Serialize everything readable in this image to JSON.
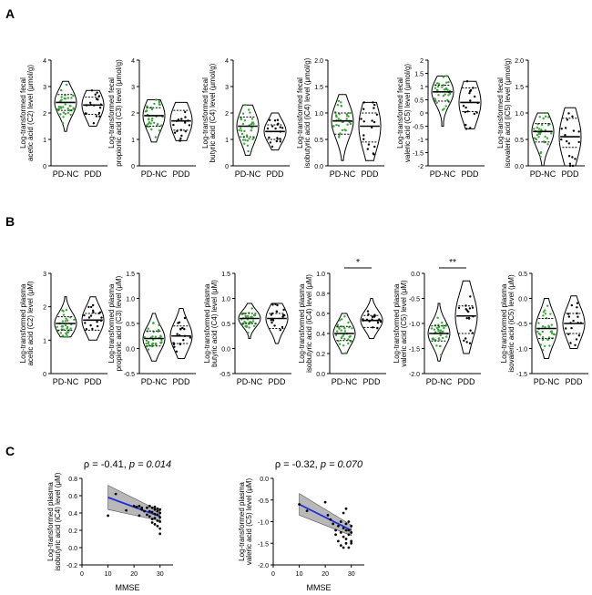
{
  "panels": [
    {
      "letter": "A"
    },
    {
      "letter": "B"
    },
    {
      "letter": "C"
    }
  ],
  "colors": {
    "pdnc_dots": "#3aa63a",
    "pdd_dots": "#000000",
    "fit_line": "#1f2fd6",
    "ci_band": "#b8b8b8"
  },
  "chart_data": [
    {
      "panel": "A",
      "type": "violin",
      "ylabel": [
        "Log-transformed fecal",
        "acetic acid (C2) level (μmol/g)"
      ],
      "categories": [
        "PD-NC",
        "PDD"
      ],
      "ylim": [
        0,
        4
      ],
      "yticks": [
        "0",
        "1",
        "2",
        "3",
        "4"
      ],
      "yticks_values": [
        0,
        1,
        2,
        3,
        4
      ],
      "series": [
        {
          "category": "PD-NC",
          "median": 2.4,
          "q1": 2.1,
          "q3": 2.7,
          "min": 1.3,
          "max": 3.2
        },
        {
          "category": "PDD",
          "median": 2.3,
          "q1": 1.95,
          "q3": 2.6,
          "min": 1.5,
          "max": 2.85
        }
      ],
      "significance": ""
    },
    {
      "panel": "A",
      "type": "violin",
      "ylabel": [
        "Log-transformed fecal",
        "propionic acid (C3) level (μmol/g)"
      ],
      "categories": [
        "PD-NC",
        "PDD"
      ],
      "ylim": [
        0,
        4
      ],
      "yticks": [
        "0",
        "1",
        "2",
        "3",
        "4"
      ],
      "yticks_values": [
        0,
        1,
        2,
        3,
        4
      ],
      "series": [
        {
          "category": "PD-NC",
          "median": 1.9,
          "q1": 1.5,
          "q3": 2.2,
          "min": 0.9,
          "max": 2.5
        },
        {
          "category": "PDD",
          "median": 1.7,
          "q1": 1.35,
          "q3": 2.1,
          "min": 0.95,
          "max": 2.4
        }
      ],
      "significance": ""
    },
    {
      "panel": "A",
      "type": "violin",
      "ylabel": [
        "Log-transformed fecal",
        "butyric acid (C4) level (μmol/g)"
      ],
      "categories": [
        "PD-NC",
        "PDD"
      ],
      "ylim": [
        0,
        4
      ],
      "yticks": [
        "0",
        "1",
        "2",
        "3",
        "4"
      ],
      "yticks_values": [
        0,
        1,
        2,
        3,
        4
      ],
      "series": [
        {
          "category": "PD-NC",
          "median": 1.5,
          "q1": 1.1,
          "q3": 1.85,
          "min": 0.4,
          "max": 2.3
        },
        {
          "category": "PDD",
          "median": 1.3,
          "q1": 1.0,
          "q3": 1.55,
          "min": 0.6,
          "max": 2.0
        }
      ],
      "significance": ""
    },
    {
      "panel": "A",
      "type": "violin",
      "ylabel": [
        "Log-transformed fecal",
        "isobutyric acid (iC4) level (μmol/g)"
      ],
      "categories": [
        "PD-NC",
        "PDD"
      ],
      "ylim": [
        0,
        2
      ],
      "yticks": [
        "0.0",
        "0.5",
        "1.0",
        "1.5",
        "2.0"
      ],
      "yticks_values": [
        0,
        0.5,
        1,
        1.5,
        2
      ],
      "series": [
        {
          "category": "PD-NC",
          "median": 0.85,
          "q1": 0.6,
          "q3": 1.0,
          "min": 0.1,
          "max": 1.35
        },
        {
          "category": "PDD",
          "median": 0.75,
          "q1": 0.45,
          "q3": 1.0,
          "min": 0.1,
          "max": 1.2
        }
      ],
      "significance": ""
    },
    {
      "panel": "A",
      "type": "violin",
      "ylabel": [
        "Log-transformed fecal",
        "valeric acid (C5) level (μmol/g)"
      ],
      "categories": [
        "PD-NC",
        "PDD"
      ],
      "ylim": [
        -2,
        2
      ],
      "yticks": [
        "-2",
        "-1.5",
        "-1",
        "-0.5",
        "0",
        "0.5",
        "1",
        "1.5",
        "2"
      ],
      "yticks_values": [
        -2,
        -1.5,
        -1,
        -0.5,
        0,
        0.5,
        1,
        1.5,
        2
      ],
      "series": [
        {
          "category": "PD-NC",
          "median": 0.8,
          "q1": 0.45,
          "q3": 1.05,
          "min": -0.5,
          "max": 1.4
        },
        {
          "category": "PDD",
          "median": 0.4,
          "q1": 0.05,
          "q3": 0.95,
          "min": -0.6,
          "max": 1.2
        }
      ],
      "significance": ""
    },
    {
      "panel": "A",
      "type": "violin",
      "ylabel": [
        "Log-transformed fecal",
        "isovaleric acid (iC5) level (μmol/g)"
      ],
      "categories": [
        "PD-NC",
        "PDD"
      ],
      "ylim": [
        0,
        2
      ],
      "yticks": [
        "0.0",
        "0.5",
        "1.0",
        "1.5",
        "2.0"
      ],
      "yticks_values": [
        0,
        0.5,
        1,
        1.5,
        2
      ],
      "series": [
        {
          "category": "PD-NC",
          "median": 0.65,
          "q1": 0.45,
          "q3": 0.8,
          "min": 0.0,
          "max": 1.0
        },
        {
          "category": "PDD",
          "median": 0.55,
          "q1": 0.35,
          "q3": 0.9,
          "min": 0.0,
          "max": 1.1
        }
      ],
      "significance": ""
    },
    {
      "panel": "B",
      "type": "violin",
      "ylabel": [
        "Log-transformed plasma",
        "acetic acid (C2) level (μM)"
      ],
      "categories": [
        "PD-NC",
        "PDD"
      ],
      "ylim": [
        0,
        3
      ],
      "yticks": [
        "0",
        "1",
        "2",
        "3"
      ],
      "yticks_values": [
        0,
        1,
        2,
        3
      ],
      "series": [
        {
          "category": "PD-NC",
          "median": 1.5,
          "q1": 1.3,
          "q3": 1.7,
          "min": 1.1,
          "max": 2.3
        },
        {
          "category": "PDD",
          "median": 1.6,
          "q1": 1.3,
          "q3": 1.8,
          "min": 1.0,
          "max": 2.3
        }
      ],
      "significance": ""
    },
    {
      "panel": "B",
      "type": "violin",
      "ylabel": [
        "Log-transformed plasma",
        "propionic acid (C3) level (μM)"
      ],
      "categories": [
        "PD-NC",
        "PDD"
      ],
      "ylim": [
        -0.5,
        1.5
      ],
      "yticks": [
        "-0.5",
        "0.0",
        "0.5",
        "1.0",
        "1.5"
      ],
      "yticks_values": [
        -0.5,
        0,
        0.5,
        1,
        1.5
      ],
      "series": [
        {
          "category": "PD-NC",
          "median": 0.2,
          "q1": 0.05,
          "q3": 0.35,
          "min": -0.25,
          "max": 0.7
        },
        {
          "category": "PDD",
          "median": 0.25,
          "q1": 0.1,
          "q3": 0.45,
          "min": -0.2,
          "max": 0.8
        }
      ],
      "significance": ""
    },
    {
      "panel": "B",
      "type": "violin",
      "ylabel": [
        "Log-transformed plasma",
        "butyric acid (C4) level (μM)"
      ],
      "categories": [
        "PD-NC",
        "PDD"
      ],
      "ylim": [
        -0.5,
        1.5
      ],
      "yticks": [
        "-0.5",
        "0.0",
        "0.5",
        "1.0",
        "1.5"
      ],
      "yticks_values": [
        -0.5,
        0,
        0.5,
        1,
        1.5
      ],
      "series": [
        {
          "category": "PD-NC",
          "median": 0.6,
          "q1": 0.5,
          "q3": 0.7,
          "min": 0.2,
          "max": 0.9
        },
        {
          "category": "PDD",
          "median": 0.6,
          "q1": 0.4,
          "q3": 0.7,
          "min": 0.1,
          "max": 0.9
        }
      ],
      "significance": ""
    },
    {
      "panel": "B",
      "type": "violin",
      "ylabel": [
        "Log-transformed plasma",
        "isobutyric acid (iC4) level (μM)"
      ],
      "categories": [
        "PD-NC",
        "PDD"
      ],
      "ylim": [
        0,
        1
      ],
      "yticks": [
        "0.0",
        "0.2",
        "0.4",
        "0.6",
        "0.8",
        "1.0"
      ],
      "yticks_values": [
        0,
        0.2,
        0.4,
        0.6,
        0.8,
        1
      ],
      "series": [
        {
          "category": "PD-NC",
          "median": 0.4,
          "q1": 0.33,
          "q3": 0.47,
          "min": 0.2,
          "max": 0.6
        },
        {
          "category": "PDD",
          "median": 0.53,
          "q1": 0.46,
          "q3": 0.58,
          "min": 0.35,
          "max": 0.75
        }
      ],
      "significance": "*"
    },
    {
      "panel": "B",
      "type": "violin",
      "ylabel": [
        "Log-transformed plasma",
        "valeric acid (C5) level (μM)"
      ],
      "categories": [
        "PD-NC",
        "PDD"
      ],
      "ylim": [
        -2,
        0
      ],
      "yticks": [
        "-2.0",
        "-1.5",
        "-1.0",
        "-0.5",
        "0.0"
      ],
      "yticks_values": [
        -2,
        -1.5,
        -1,
        -0.5,
        0
      ],
      "series": [
        {
          "category": "PD-NC",
          "median": -1.2,
          "q1": -1.35,
          "q3": -1.05,
          "min": -1.75,
          "max": -0.6
        },
        {
          "category": "PDD",
          "median": -0.85,
          "q1": -1.2,
          "q3": -0.65,
          "min": -1.6,
          "max": -0.15
        }
      ],
      "significance": "**"
    },
    {
      "panel": "B",
      "type": "violin",
      "ylabel": [
        "Log-transformed plasma",
        "isovaleric acid (iC5) level (μM)"
      ],
      "categories": [
        "PD-NC",
        "PDD"
      ],
      "ylim": [
        -1.5,
        0.5
      ],
      "yticks": [
        "-1.5",
        "-1.0",
        "-0.5",
        "0.0",
        "0.5"
      ],
      "yticks_values": [
        -1.5,
        -1,
        -0.5,
        0,
        0.5
      ],
      "series": [
        {
          "category": "PD-NC",
          "median": -0.6,
          "q1": -0.8,
          "q3": -0.4,
          "min": -1.2,
          "max": 0.0
        },
        {
          "category": "PDD",
          "median": -0.5,
          "q1": -0.7,
          "q3": -0.3,
          "min": -1.0,
          "max": 0.05
        }
      ],
      "significance": ""
    },
    {
      "panel": "C",
      "type": "scatter",
      "annotation": {
        "rho": "ρ = -0.41, ",
        "p": "p = 0.014"
      },
      "ylabel": [
        "Log-transformed plasma",
        "isobutyric acid (iC4) level (μM)"
      ],
      "xlabel": "MMSE",
      "xlim": [
        0,
        35
      ],
      "ylim": [
        -0.2,
        0.8
      ],
      "xticks": [
        "0",
        "10",
        "20",
        "30"
      ],
      "xticks_values": [
        0,
        10,
        20,
        30
      ],
      "yticks": [
        "-0.2",
        "0.0",
        "0.2",
        "0.4",
        "0.6",
        "0.8"
      ],
      "yticks_values": [
        -0.2,
        0,
        0.2,
        0.4,
        0.6,
        0.8
      ],
      "regression": {
        "x": [
          10,
          30
        ],
        "y": [
          0.58,
          0.36
        ],
        "ci_upper": [
          0.72,
          0.42
        ],
        "ci_lower": [
          0.44,
          0.31
        ]
      },
      "points": [
        [
          10,
          0.37
        ],
        [
          13,
          0.62
        ],
        [
          17,
          0.43
        ],
        [
          20,
          0.48
        ],
        [
          21,
          0.47
        ],
        [
          22,
          0.48
        ],
        [
          22,
          0.37
        ],
        [
          23,
          0.46
        ],
        [
          23,
          0.44
        ],
        [
          24,
          0.42
        ],
        [
          25,
          0.46
        ],
        [
          25,
          0.38
        ],
        [
          26,
          0.48
        ],
        [
          26,
          0.42
        ],
        [
          26,
          0.36
        ],
        [
          27,
          0.46
        ],
        [
          27,
          0.41
        ],
        [
          27,
          0.33
        ],
        [
          27,
          0.29
        ],
        [
          28,
          0.47
        ],
        [
          28,
          0.44
        ],
        [
          28,
          0.39
        ],
        [
          28,
          0.34
        ],
        [
          28,
          0.27
        ],
        [
          29,
          0.45
        ],
        [
          29,
          0.42
        ],
        [
          29,
          0.38
        ],
        [
          29,
          0.31
        ],
        [
          29,
          0.25
        ],
        [
          30,
          0.44
        ],
        [
          30,
          0.4
        ],
        [
          30,
          0.35
        ],
        [
          30,
          0.3
        ],
        [
          30,
          0.22
        ],
        [
          30,
          0.16
        ]
      ]
    },
    {
      "panel": "C",
      "type": "scatter",
      "annotation": {
        "rho": "ρ = -0.32, ",
        "p": "p = 0.070"
      },
      "ylabel": [
        "Log-transformed plasma",
        "valeric acid (C5) level (μM)"
      ],
      "xlabel": "MMSE",
      "xlim": [
        0,
        35
      ],
      "ylim": [
        -2,
        0
      ],
      "xticks": [
        "0",
        "10",
        "20",
        "30"
      ],
      "xticks_values": [
        0,
        10,
        20,
        30
      ],
      "yticks": [
        "-2.0",
        "-1.5",
        "-1.0",
        "-0.5",
        "0.0"
      ],
      "yticks_values": [
        -2,
        -1.5,
        -1,
        -0.5,
        0
      ],
      "regression": {
        "x": [
          10,
          30
        ],
        "y": [
          -0.6,
          -1.2
        ],
        "ci_upper": [
          -0.35,
          -1.08
        ],
        "ci_lower": [
          -0.85,
          -1.32
        ]
      },
      "points": [
        [
          10,
          -0.6
        ],
        [
          13,
          -0.75
        ],
        [
          20,
          -0.55
        ],
        [
          21,
          -0.85
        ],
        [
          22,
          -0.95
        ],
        [
          23,
          -1.05
        ],
        [
          24,
          -1.2
        ],
        [
          24,
          -1.3
        ],
        [
          25,
          -1.1
        ],
        [
          25,
          -1.45
        ],
        [
          26,
          -1.0
        ],
        [
          26,
          -1.25
        ],
        [
          26,
          -1.55
        ],
        [
          27,
          -0.8
        ],
        [
          27,
          -1.15
        ],
        [
          27,
          -1.35
        ],
        [
          27,
          -1.6
        ],
        [
          28,
          -0.7
        ],
        [
          28,
          -1.05
        ],
        [
          28,
          -1.2
        ],
        [
          28,
          -1.4
        ],
        [
          28,
          -1.5
        ],
        [
          29,
          -1.0
        ],
        [
          29,
          -1.2
        ],
        [
          29,
          -1.3
        ],
        [
          29,
          -1.6
        ],
        [
          30,
          -1.1
        ],
        [
          30,
          -1.25
        ],
        [
          30,
          -1.45
        ],
        [
          30,
          -1.5
        ]
      ]
    }
  ]
}
